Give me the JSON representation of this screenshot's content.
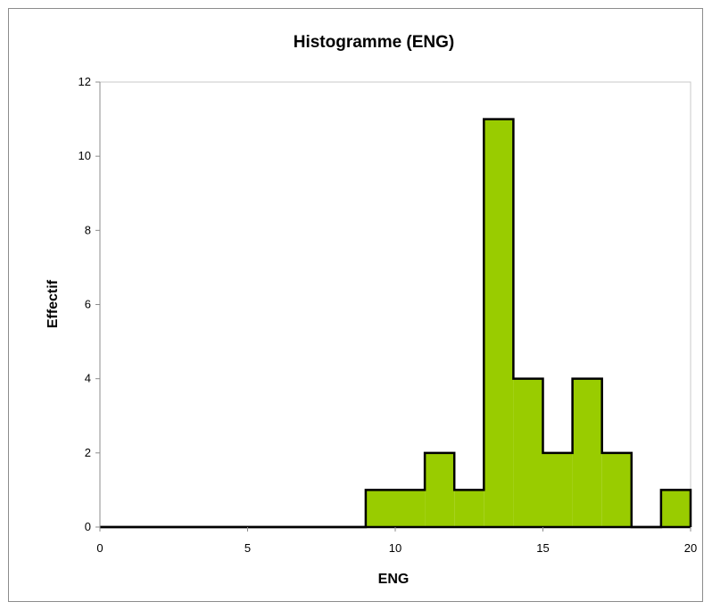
{
  "chart_data": {
    "type": "bar",
    "title": "Histogramme (ENG)",
    "xlabel": "ENG",
    "ylabel": "Effectif",
    "xlim": [
      0,
      20
    ],
    "ylim": [
      0,
      12
    ],
    "xticks": [
      0,
      5,
      10,
      15,
      20
    ],
    "yticks": [
      0,
      2,
      4,
      6,
      8,
      10,
      12
    ],
    "bin_width": 1,
    "bins": [
      {
        "x0": 0,
        "x1": 1,
        "count": 0
      },
      {
        "x0": 1,
        "x1": 2,
        "count": 0
      },
      {
        "x0": 2,
        "x1": 3,
        "count": 0
      },
      {
        "x0": 3,
        "x1": 4,
        "count": 0
      },
      {
        "x0": 4,
        "x1": 5,
        "count": 0
      },
      {
        "x0": 5,
        "x1": 6,
        "count": 0
      },
      {
        "x0": 6,
        "x1": 7,
        "count": 0
      },
      {
        "x0": 7,
        "x1": 8,
        "count": 0
      },
      {
        "x0": 8,
        "x1": 9,
        "count": 0
      },
      {
        "x0": 9,
        "x1": 10,
        "count": 1
      },
      {
        "x0": 10,
        "x1": 11,
        "count": 1
      },
      {
        "x0": 11,
        "x1": 12,
        "count": 2
      },
      {
        "x0": 12,
        "x1": 13,
        "count": 1
      },
      {
        "x0": 13,
        "x1": 14,
        "count": 11
      },
      {
        "x0": 14,
        "x1": 15,
        "count": 4
      },
      {
        "x0": 15,
        "x1": 16,
        "count": 2
      },
      {
        "x0": 16,
        "x1": 17,
        "count": 4
      },
      {
        "x0": 17,
        "x1": 18,
        "count": 2
      },
      {
        "x0": 18,
        "x1": 19,
        "count": 0
      },
      {
        "x0": 19,
        "x1": 20,
        "count": 1
      }
    ],
    "bar_color": "#99cc00",
    "bar_edge_color": "#000000",
    "grid": false
  }
}
